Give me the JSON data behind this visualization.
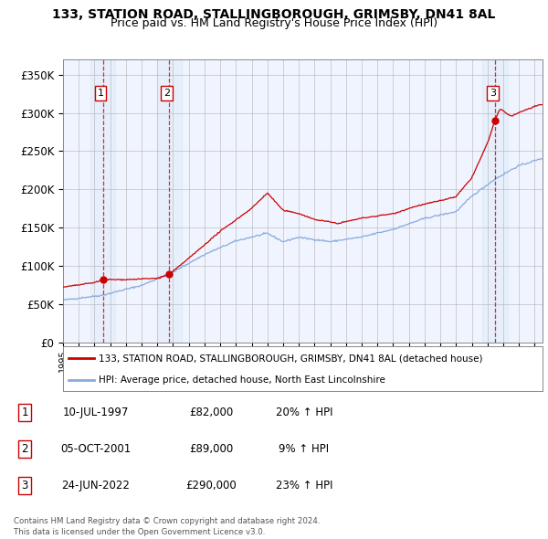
{
  "title": "133, STATION ROAD, STALLINGBOROUGH, GRIMSBY, DN41 8AL",
  "subtitle": "Price paid vs. HM Land Registry's House Price Index (HPI)",
  "title_fontsize": 10,
  "subtitle_fontsize": 9,
  "ylim": [
    0,
    370000
  ],
  "yticks": [
    0,
    50000,
    100000,
    150000,
    200000,
    250000,
    300000,
    350000
  ],
  "ytick_labels": [
    "£0",
    "£50K",
    "£100K",
    "£150K",
    "£200K",
    "£250K",
    "£300K",
    "£350K"
  ],
  "background_color": "#ffffff",
  "plot_bg_color": "#f0f4ff",
  "grid_color": "#aaaaaa",
  "sale_color": "#cc0000",
  "hpi_color": "#88aadd",
  "sales": [
    {
      "date_num": 1997.53,
      "price": 82000,
      "label": "1",
      "date_str": "10-JUL-1997",
      "pct": "20%"
    },
    {
      "date_num": 2001.76,
      "price": 89000,
      "label": "2",
      "date_str": "05-OCT-2001",
      "pct": "9%"
    },
    {
      "date_num": 2022.48,
      "price": 290000,
      "label": "3",
      "date_str": "24-JUN-2022",
      "pct": "23%"
    }
  ],
  "legend_sale_label": "133, STATION ROAD, STALLINGBOROUGH, GRIMSBY, DN41 8AL (detached house)",
  "legend_hpi_label": "HPI: Average price, detached house, North East Lincolnshire",
  "footnote": "Contains HM Land Registry data © Crown copyright and database right 2024.\nThis data is licensed under the Open Government Licence v3.0.",
  "xmin": 1995,
  "xmax": 2025.5
}
